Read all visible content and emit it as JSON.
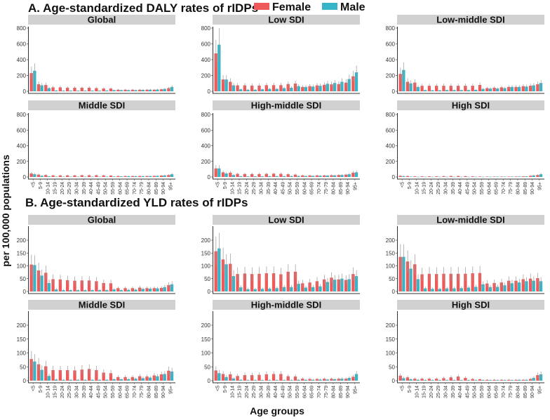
{
  "legend": {
    "female": "Female",
    "male": "Male"
  },
  "colors": {
    "female": "#EE5A5A",
    "male": "#37B5C8",
    "strip": "#D1D1D1",
    "errorbar": "#999999"
  },
  "ylabel": "per 100,000 populations",
  "xlabel": "Age groups",
  "chart_data": [
    {
      "type": "bar",
      "title": "A. Age-standardized DALY rates of rIDPs",
      "ylim": [
        0,
        820
      ],
      "yticks": [
        "0",
        "200",
        "400",
        "600",
        "800"
      ],
      "ytick_values": [
        0,
        200,
        400,
        600,
        800
      ],
      "categories": [
        "<5",
        "5-9",
        "10-14",
        "15-19",
        "20-24",
        "25-29",
        "30-34",
        "35-39",
        "40-44",
        "45-49",
        "50-54",
        "55-59",
        "60-64",
        "65-69",
        "70-74",
        "75-79",
        "80-84",
        "85-89",
        "90-94",
        "95+"
      ],
      "panels": [
        {
          "name": "Global",
          "series": [
            {
              "name": "Female",
              "values": [
                230,
                90,
                80,
                50,
                50,
                45,
                45,
                45,
                45,
                40,
                35,
                35,
                20,
                20,
                20,
                20,
                20,
                20,
                25,
                40
              ]
            },
            {
              "name": "Male",
              "values": [
                260,
                75,
                40,
                10,
                8,
                8,
                8,
                8,
                8,
                8,
                10,
                15,
                15,
                15,
                15,
                18,
                20,
                22,
                30,
                55
              ]
            }
          ]
        },
        {
          "name": "Low SDI",
          "series": [
            {
              "name": "Female",
              "values": [
                480,
                150,
                120,
                75,
                75,
                72,
                72,
                78,
                78,
                78,
                92,
                98,
                55,
                65,
                75,
                82,
                88,
                92,
                110,
                190
              ]
            },
            {
              "name": "Male",
              "values": [
                590,
                150,
                75,
                25,
                20,
                20,
                25,
                30,
                30,
                40,
                45,
                65,
                55,
                60,
                70,
                95,
                105,
                120,
                155,
                240
              ]
            }
          ]
        },
        {
          "name": "Low-middle SDI",
          "series": [
            {
              "name": "Female",
              "values": [
                220,
                120,
                110,
                70,
                70,
                70,
                70,
                70,
                70,
                70,
                70,
                80,
                40,
                45,
                50,
                55,
                55,
                65,
                70,
                90
              ]
            },
            {
              "name": "Male",
              "values": [
                270,
                100,
                55,
                15,
                12,
                12,
                15,
                15,
                15,
                15,
                18,
                30,
                35,
                35,
                40,
                55,
                55,
                60,
                75,
                105
              ]
            }
          ]
        },
        {
          "name": "Middle SDI",
          "series": [
            {
              "name": "Female",
              "values": [
                45,
                30,
                25,
                20,
                20,
                20,
                20,
                22,
                22,
                22,
                20,
                18,
                12,
                12,
                12,
                12,
                12,
                14,
                18,
                25
              ]
            },
            {
              "name": "Male",
              "values": [
                35,
                15,
                8,
                5,
                4,
                4,
                4,
                4,
                4,
                4,
                5,
                6,
                8,
                10,
                10,
                10,
                12,
                14,
                20,
                35
              ]
            }
          ]
        },
        {
          "name": "High-middle SDI",
          "series": [
            {
              "name": "Female",
              "values": [
                110,
                60,
                55,
                40,
                38,
                38,
                38,
                40,
                42,
                40,
                35,
                30,
                20,
                20,
                20,
                20,
                22,
                25,
                30,
                55
              ]
            },
            {
              "name": "Male",
              "values": [
                110,
                45,
                25,
                10,
                8,
                8,
                8,
                10,
                10,
                10,
                12,
                12,
                12,
                14,
                16,
                18,
                20,
                25,
                35,
                60
              ]
            }
          ]
        },
        {
          "name": "High SDI",
          "series": [
            {
              "name": "Female",
              "values": [
                15,
                12,
                8,
                8,
                8,
                8,
                10,
                12,
                12,
                10,
                8,
                6,
                5,
                5,
                5,
                5,
                6,
                8,
                15,
                25
              ]
            },
            {
              "name": "Male",
              "values": [
                10,
                5,
                3,
                3,
                3,
                3,
                3,
                3,
                3,
                3,
                3,
                3,
                3,
                4,
                4,
                5,
                6,
                8,
                20,
                35
              ]
            }
          ]
        }
      ]
    },
    {
      "type": "bar",
      "title": "B. Age-standardized YLD rates of rIDPs",
      "ylim": [
        0,
        250
      ],
      "yticks": [
        "0",
        "50",
        "100",
        "150",
        "200"
      ],
      "ytick_values": [
        0,
        50,
        100,
        150,
        200
      ],
      "categories": [
        "<5",
        "5-9",
        "10-14",
        "15-19",
        "20-24",
        "25-29",
        "30-34",
        "35-39",
        "40-44",
        "45-49",
        "50-54",
        "55-59",
        "60-64",
        "65-69",
        "70-74",
        "75-79",
        "80-84",
        "85-89",
        "90-94",
        "95+"
      ],
      "panels": [
        {
          "name": "Global",
          "series": [
            {
              "name": "Female",
              "values": [
                105,
                82,
                73,
                48,
                47,
                44,
                42,
                43,
                43,
                40,
                33,
                32,
                13,
                13,
                13,
                15,
                13,
                13,
                14,
                25
              ]
            },
            {
              "name": "Male",
              "values": [
                103,
                62,
                33,
                8,
                5,
                5,
                5,
                5,
                5,
                5,
                5,
                8,
                5,
                6,
                7,
                10,
                11,
                12,
                17,
                28
              ]
            }
          ]
        },
        {
          "name": "Low SDI",
          "series": [
            {
              "name": "Female",
              "values": [
                157,
                125,
                108,
                68,
                70,
                68,
                69,
                71,
                71,
                67,
                77,
                77,
                32,
                35,
                40,
                47,
                54,
                47,
                45,
                68
              ]
            },
            {
              "name": "Male",
              "values": [
                168,
                106,
                60,
                16,
                9,
                9,
                10,
                11,
                13,
                17,
                17,
                30,
                15,
                17,
                20,
                37,
                46,
                50,
                48,
                60
              ]
            }
          ]
        },
        {
          "name": "Low-middle SDI",
          "series": [
            {
              "name": "Female",
              "values": [
                135,
                117,
                106,
                67,
                69,
                68,
                69,
                69,
                69,
                69,
                71,
                72,
                31,
                33,
                35,
                42,
                42,
                48,
                50,
                52
              ]
            },
            {
              "name": "Male",
              "values": [
                135,
                89,
                48,
                12,
                10,
                10,
                12,
                12,
                13,
                15,
                18,
                28,
                17,
                18,
                24,
                32,
                35,
                40,
                42,
                40
              ]
            }
          ]
        },
        {
          "name": "Middle SDI",
          "series": [
            {
              "name": "Female",
              "values": [
                78,
                59,
                52,
                38,
                38,
                38,
                37,
                40,
                42,
                38,
                29,
                27,
                13,
                13,
                13,
                16,
                15,
                19,
                23,
                36
              ]
            },
            {
              "name": "Male",
              "values": [
                69,
                39,
                17,
                4,
                3,
                3,
                3,
                3,
                3,
                3,
                3,
                5,
                5,
                5,
                7,
                9,
                11,
                16,
                24,
                33
              ]
            }
          ]
        },
        {
          "name": "High-middle SDI",
          "series": [
            {
              "name": "Female",
              "values": [
                37,
                24,
                23,
                17,
                20,
                20,
                21,
                23,
                24,
                24,
                16,
                15,
                7,
                6,
                6,
                7,
                7,
                7,
                7,
                14
              ]
            },
            {
              "name": "Male",
              "values": [
                27,
                13,
                8,
                3,
                2,
                2,
                2,
                2,
                2,
                2,
                2,
                3,
                3,
                3,
                4,
                4,
                5,
                7,
                10,
                24
              ]
            }
          ]
        },
        {
          "name": "High SDI",
          "series": [
            {
              "name": "Female",
              "values": [
                18,
                12,
                7,
                7,
                7,
                7,
                9,
                12,
                15,
                10,
                6,
                5,
                3,
                3,
                3,
                3,
                3,
                3,
                6,
                20
              ]
            },
            {
              "name": "Male",
              "values": [
                9,
                5,
                3,
                2,
                2,
                2,
                2,
                2,
                2,
                2,
                2,
                2,
                2,
                2,
                2,
                2,
                3,
                3,
                10,
                23
              ]
            }
          ]
        }
      ]
    }
  ]
}
